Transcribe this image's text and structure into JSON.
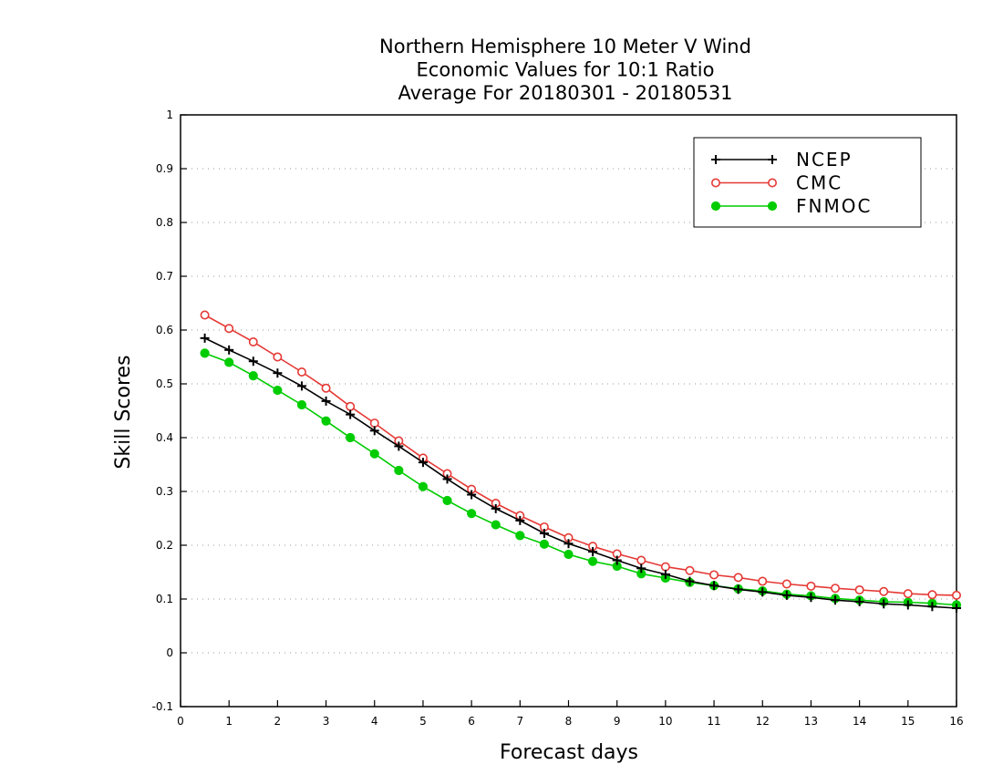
{
  "chart_data": {
    "type": "line",
    "title_lines": [
      "Northern Hemisphere 10 Meter V Wind",
      "Economic Values for 10:1 Ratio",
      "Average For 20180301 - 20180531"
    ],
    "xlabel": "Forecast days",
    "ylabel": "Skill Scores",
    "xlim": [
      0,
      16
    ],
    "ylim": [
      -0.1,
      1
    ],
    "xticks": [
      "0",
      "1",
      "2",
      "3",
      "4",
      "5",
      "6",
      "7",
      "8",
      "9",
      "10",
      "11",
      "12",
      "13",
      "14",
      "15",
      "16"
    ],
    "yticks": [
      "-0.1",
      "0",
      "0.1",
      "0.2",
      "0.3",
      "0.4",
      "0.5",
      "0.6",
      "0.7",
      "0.8",
      "0.9",
      "1"
    ],
    "grid": "horizontal dotted",
    "legend_position": "top-right",
    "x": [
      0.5,
      1,
      1.5,
      2,
      2.5,
      3,
      3.5,
      4,
      4.5,
      5,
      5.5,
      6,
      6.5,
      7,
      7.5,
      8,
      8.5,
      9,
      9.5,
      10,
      10.5,
      11,
      11.5,
      12,
      12.5,
      13,
      13.5,
      14,
      14.5,
      15,
      15.5,
      16
    ],
    "series": [
      {
        "name": "NCEP",
        "color": "#000000",
        "marker": "plus",
        "values": [
          0.585,
          0.563,
          0.542,
          0.52,
          0.496,
          0.468,
          0.443,
          0.413,
          0.384,
          0.354,
          0.323,
          0.294,
          0.268,
          0.246,
          0.222,
          0.203,
          0.188,
          0.172,
          0.157,
          0.146,
          0.133,
          0.125,
          0.118,
          0.113,
          0.107,
          0.103,
          0.098,
          0.095,
          0.091,
          0.089,
          0.086,
          0.083
        ]
      },
      {
        "name": "CMC",
        "color": "#e53935",
        "marker": "open-circle",
        "values": [
          0.628,
          0.603,
          0.578,
          0.55,
          0.522,
          0.492,
          0.458,
          0.427,
          0.394,
          0.362,
          0.333,
          0.304,
          0.278,
          0.255,
          0.234,
          0.214,
          0.198,
          0.184,
          0.172,
          0.16,
          0.153,
          0.145,
          0.14,
          0.133,
          0.128,
          0.124,
          0.12,
          0.117,
          0.114,
          0.11,
          0.108,
          0.107
        ]
      },
      {
        "name": "FNMOC",
        "color": "#00cc00",
        "marker": "filled-circle",
        "values": [
          0.557,
          0.54,
          0.515,
          0.488,
          0.461,
          0.431,
          0.4,
          0.37,
          0.339,
          0.309,
          0.283,
          0.259,
          0.238,
          0.218,
          0.202,
          0.183,
          0.17,
          0.161,
          0.147,
          0.139,
          0.131,
          0.125,
          0.119,
          0.115,
          0.109,
          0.106,
          0.101,
          0.098,
          0.095,
          0.094,
          0.092,
          0.089
        ]
      }
    ]
  }
}
